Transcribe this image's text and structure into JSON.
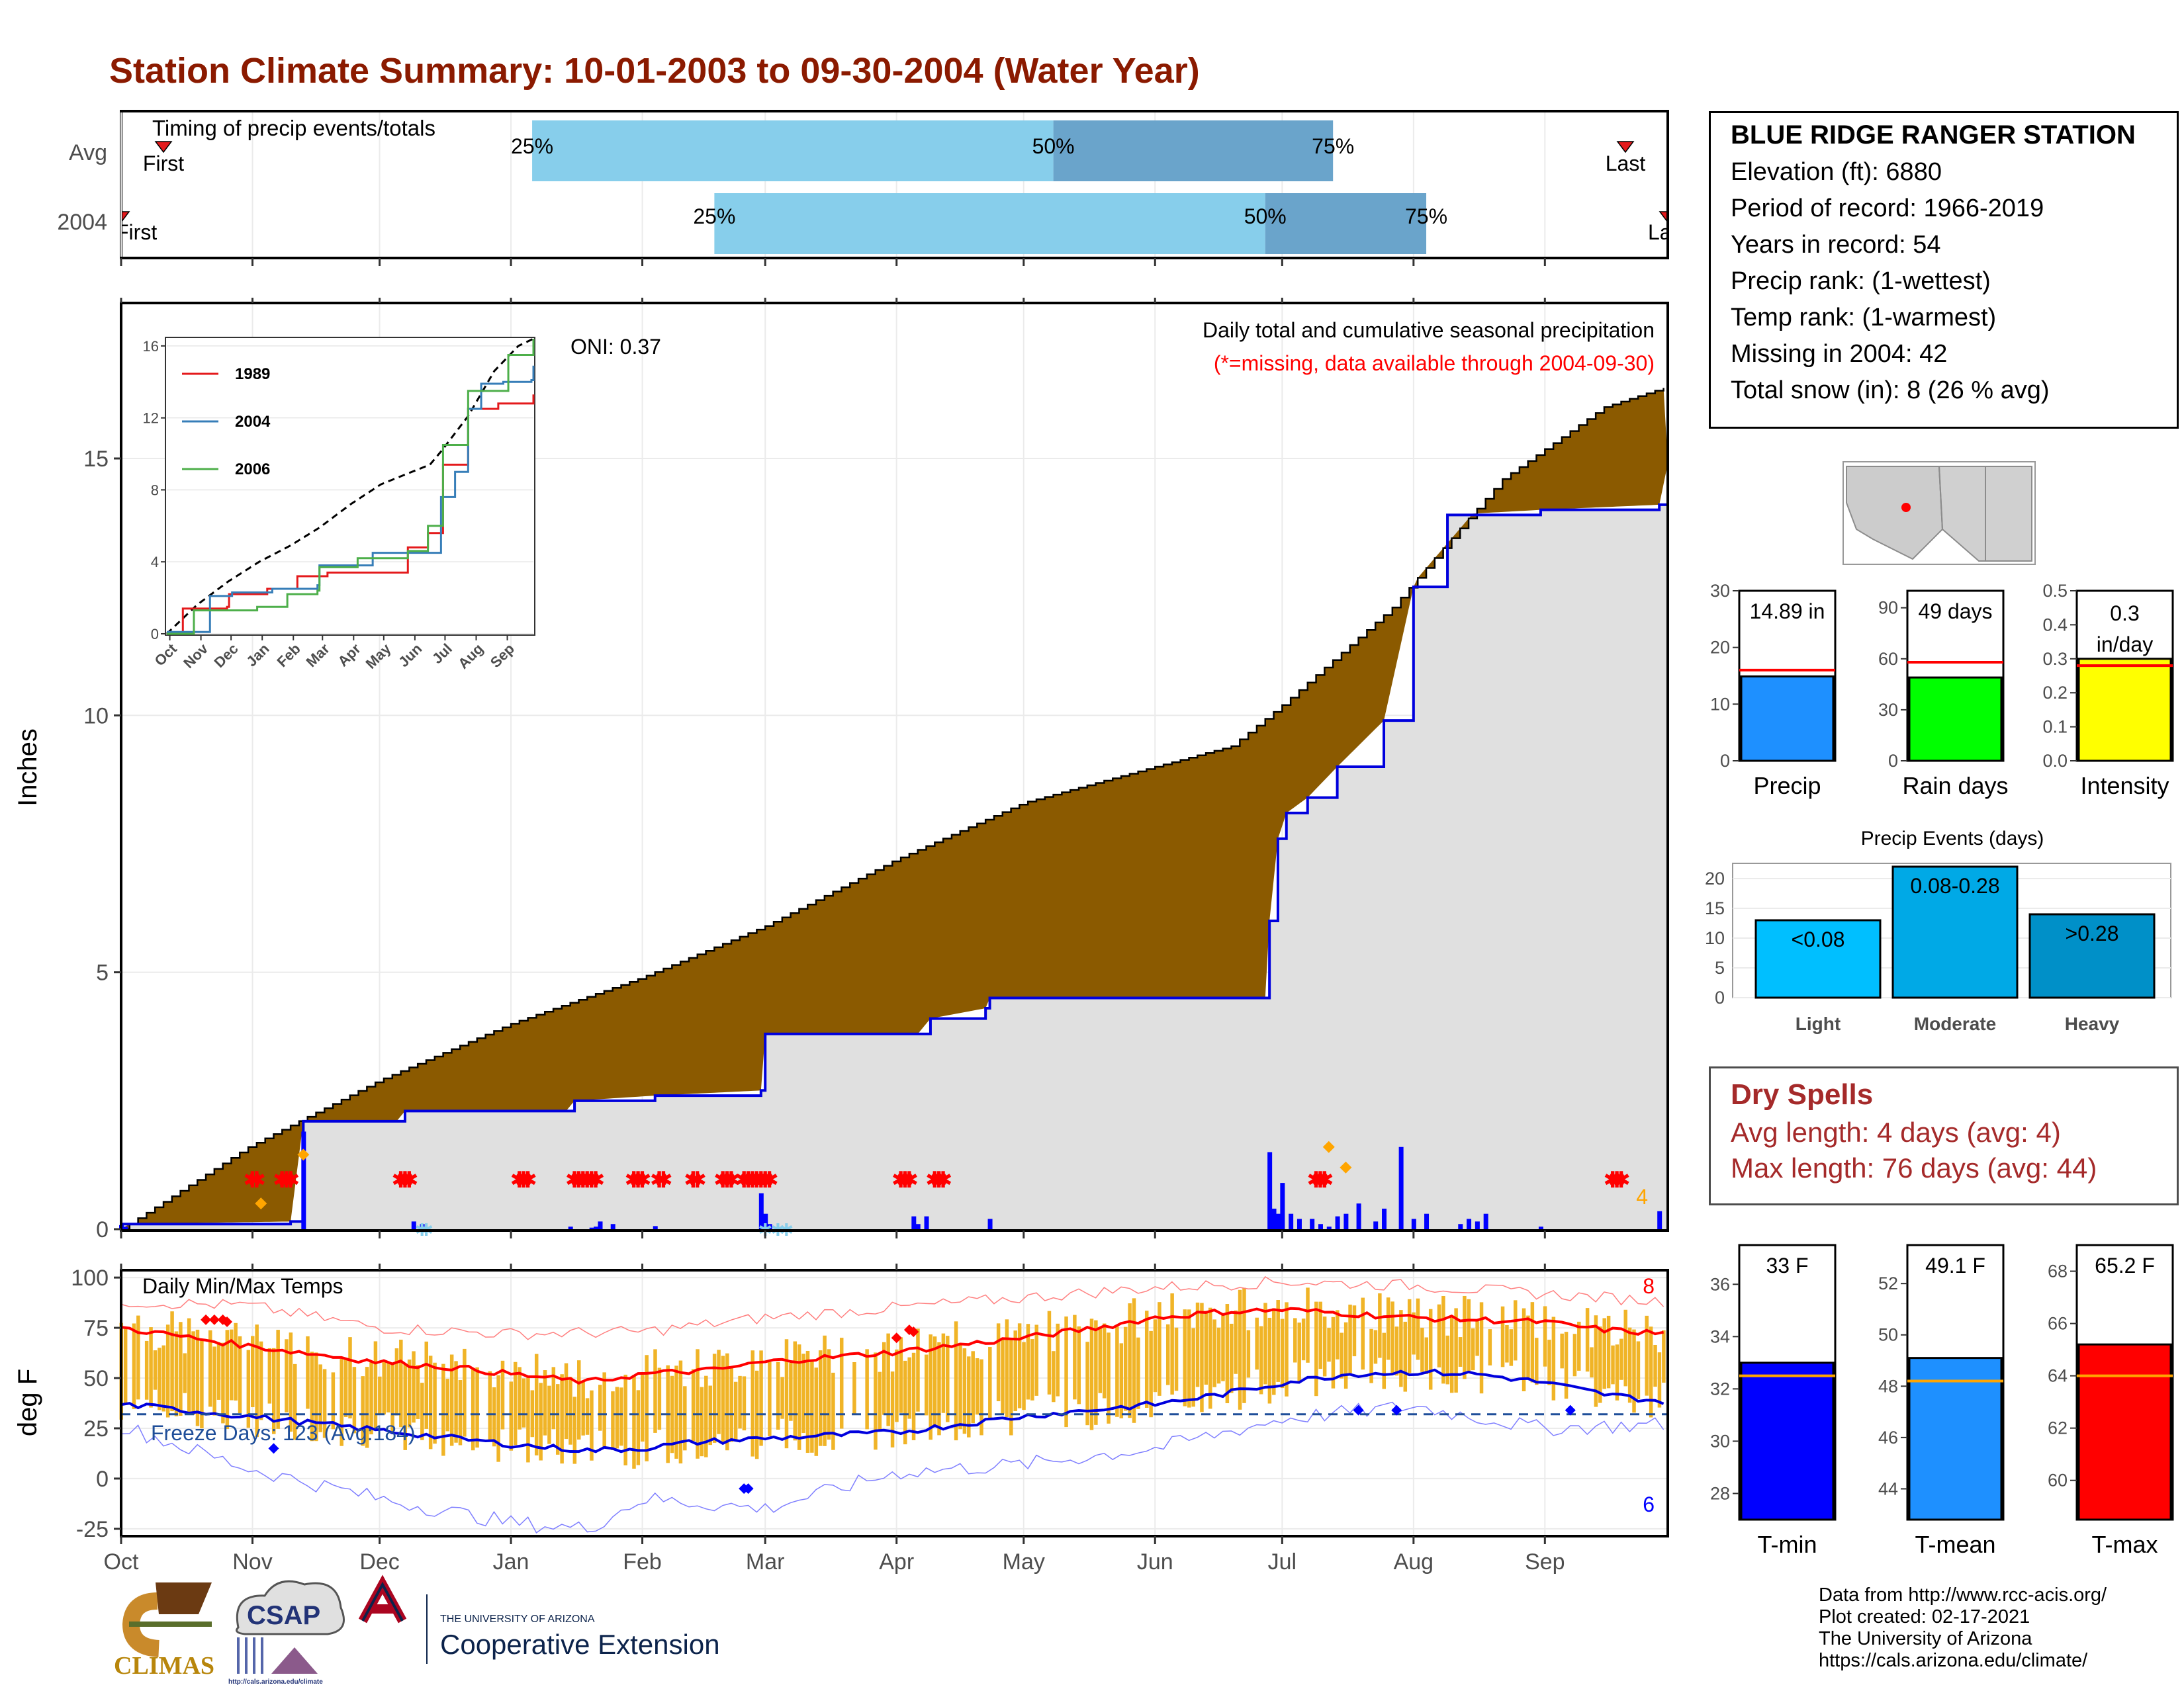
{
  "title": "Station Climate Summary: 10-01-2003 to 09-30-2004 (Water Year)",
  "timing": {
    "label": "Timing of precip events/totals",
    "rows": [
      {
        "name": "Avg",
        "first_day": 10,
        "last_day": 355,
        "p25": 97,
        "p50": 220,
        "p75": 286,
        "first_label": "First",
        "last_label": "Last"
      },
      {
        "name": "2004",
        "first_day": 0,
        "last_day": 365,
        "p25": 140,
        "p50": 270,
        "p75": 308,
        "first_label": "First",
        "last_label": "Last"
      }
    ],
    "pct_labels": [
      "25%",
      "50%",
      "75%"
    ]
  },
  "station": {
    "name": "BLUE RIDGE RANGER STATION",
    "lines": [
      "Elevation (ft): 6880",
      "Period of record: 1966-2019",
      "Years in record: 54",
      "Precip rank:  (1-wettest)",
      "Temp rank:  (1-warmest)",
      "Missing in 2004: 42",
      "Total snow (in): 8 (26 % avg)"
    ]
  },
  "precip_panel": {
    "ylabel": "Inches",
    "oni": "ONI: 0.37",
    "subtitle": "Daily total and cumulative seasonal precipitation",
    "missing_note": "(*=missing, data available through 2004-09-30)",
    "corner_count": "4"
  },
  "month_labels": [
    "Oct",
    "Nov",
    "Dec",
    "Jan",
    "Feb",
    "Mar",
    "Apr",
    "May",
    "Jun",
    "Jul",
    "Aug",
    "Sep"
  ],
  "chart_data": [
    {
      "type": "area",
      "name": "cumulative-precip",
      "ylabel": "Inches",
      "ylim": [
        0,
        18
      ],
      "xlim": [
        0,
        365
      ],
      "avg_cumulative": [
        [
          0,
          0
        ],
        [
          30,
          1.6
        ],
        [
          61,
          2.9
        ],
        [
          92,
          4.0
        ],
        [
          123,
          4.9
        ],
        [
          152,
          5.9
        ],
        [
          183,
          7.2
        ],
        [
          213,
          8.3
        ],
        [
          244,
          9.0
        ],
        [
          262,
          9.4
        ],
        [
          274,
          10.2
        ],
        [
          300,
          12.1
        ],
        [
          326,
          14.6
        ],
        [
          350,
          16.0
        ],
        [
          365,
          16.4
        ]
      ],
      "obs_cumulative": [
        [
          0,
          0.1
        ],
        [
          40,
          0.15
        ],
        [
          43,
          2.1
        ],
        [
          65,
          2.1
        ],
        [
          67,
          2.3
        ],
        [
          105,
          2.3
        ],
        [
          107,
          2.5
        ],
        [
          126,
          2.6
        ],
        [
          151,
          2.7
        ],
        [
          152,
          3.8
        ],
        [
          188,
          3.8
        ],
        [
          191,
          4.1
        ],
        [
          204,
          4.3
        ],
        [
          205,
          4.5
        ],
        [
          270,
          4.5
        ],
        [
          271,
          6.0
        ],
        [
          273,
          7.6
        ],
        [
          275,
          8.1
        ],
        [
          280,
          8.4
        ],
        [
          287,
          9.0
        ],
        [
          298,
          9.9
        ],
        [
          305,
          12.5
        ],
        [
          313,
          13.9
        ],
        [
          335,
          14.0
        ],
        [
          363,
          14.1
        ],
        [
          365,
          14.9
        ]
      ]
    },
    {
      "type": "bar",
      "name": "daily-precip",
      "daily": [
        [
          0,
          0.08
        ],
        [
          1,
          0.05
        ],
        [
          43,
          1.9
        ],
        [
          69,
          0.15
        ],
        [
          71,
          0.1
        ],
        [
          106,
          0.05
        ],
        [
          111,
          0.03
        ],
        [
          112,
          0.05
        ],
        [
          113,
          0.15
        ],
        [
          116,
          0.1
        ],
        [
          126,
          0.06
        ],
        [
          151,
          0.7
        ],
        [
          152,
          0.3
        ],
        [
          153,
          0.1
        ],
        [
          187,
          0.25
        ],
        [
          188,
          0.1
        ],
        [
          190,
          0.25
        ],
        [
          205,
          0.2
        ],
        [
          271,
          1.5
        ],
        [
          272,
          0.4
        ],
        [
          273,
          0.3
        ],
        [
          274,
          0.9
        ],
        [
          276,
          0.3
        ],
        [
          278,
          0.2
        ],
        [
          281,
          0.2
        ],
        [
          283,
          0.1
        ],
        [
          285,
          0.05
        ],
        [
          287,
          0.25
        ],
        [
          289,
          0.3
        ],
        [
          292,
          0.5
        ],
        [
          296,
          0.15
        ],
        [
          298,
          0.4
        ],
        [
          302,
          1.6
        ],
        [
          305,
          0.2
        ],
        [
          308,
          0.3
        ],
        [
          316,
          0.1
        ],
        [
          318,
          0.2
        ],
        [
          320,
          0.15
        ],
        [
          322,
          0.3
        ],
        [
          335,
          0.05
        ],
        [
          363,
          0.35
        ]
      ],
      "missing_days": [
        31,
        32,
        38,
        39,
        40,
        66,
        67,
        68,
        94,
        95,
        96,
        107,
        108,
        109,
        110,
        111,
        112,
        121,
        122,
        123,
        127,
        128,
        135,
        136,
        142,
        143,
        144,
        147,
        148,
        149,
        150,
        151,
        152,
        153,
        184,
        185,
        186,
        192,
        193,
        194,
        282,
        283,
        284,
        352,
        353,
        354
      ],
      "snow_days": [
        71,
        72,
        152,
        155,
        157
      ],
      "events": [
        [
          33,
          0.5
        ],
        [
          43,
          1.45
        ],
        [
          285,
          1.6
        ],
        [
          289,
          1.2
        ]
      ]
    },
    {
      "type": "line",
      "name": "inset-cumulative",
      "x_tick_labels": [
        "Oct",
        "Nov",
        "Dec",
        "Jan",
        "Feb",
        "Mar",
        "Apr",
        "May",
        "Jun",
        "Jul",
        "Aug",
        "Sep"
      ],
      "y_ticks": [
        0,
        4,
        8,
        12,
        16
      ],
      "ylim": [
        0,
        16
      ],
      "series": [
        {
          "name": "1989",
          "color": "#E41A1C",
          "points": [
            [
              0,
              0
            ],
            [
              15,
              0
            ],
            [
              16,
              1.4
            ],
            [
              60,
              1.5
            ],
            [
              62,
              2.2
            ],
            [
              100,
              2.5
            ],
            [
              130,
              3.2
            ],
            [
              160,
              3.4
            ],
            [
              240,
              4.8
            ],
            [
              260,
              5.6
            ],
            [
              275,
              9.4
            ],
            [
              300,
              12.5
            ],
            [
              330,
              12.8
            ],
            [
              365,
              13.3
            ]
          ]
        },
        {
          "name": "2004",
          "color": "#377EB8",
          "points": [
            [
              0,
              0.1
            ],
            [
              40,
              0.1
            ],
            [
              43,
              2.1
            ],
            [
              65,
              2.3
            ],
            [
              105,
              2.5
            ],
            [
              150,
              2.7
            ],
            [
              152,
              3.8
            ],
            [
              188,
              3.8
            ],
            [
              205,
              4.5
            ],
            [
              270,
              4.5
            ],
            [
              273,
              7.6
            ],
            [
              287,
              9.0
            ],
            [
              300,
              12.5
            ],
            [
              313,
              13.9
            ],
            [
              335,
              14.0
            ],
            [
              363,
              14.1
            ],
            [
              365,
              14.9
            ]
          ]
        },
        {
          "name": "2006",
          "color": "#4DAF4A",
          "points": [
            [
              0,
              0
            ],
            [
              25,
              0
            ],
            [
              27,
              1.3
            ],
            [
              90,
              1.5
            ],
            [
              120,
              2.2
            ],
            [
              150,
              2.4
            ],
            [
              152,
              3.7
            ],
            [
              190,
              4.2
            ],
            [
              240,
              4.6
            ],
            [
              260,
              6.0
            ],
            [
              275,
              10.5
            ],
            [
              300,
              13.5
            ],
            [
              340,
              15.5
            ],
            [
              365,
              16.4
            ]
          ]
        }
      ],
      "avg_series": {
        "name": "avg",
        "points": [
          [
            0,
            0
          ],
          [
            30,
            1.6
          ],
          [
            61,
            2.9
          ],
          [
            92,
            4.0
          ],
          [
            123,
            4.9
          ],
          [
            152,
            5.9
          ],
          [
            183,
            7.2
          ],
          [
            213,
            8.3
          ],
          [
            244,
            9.0
          ],
          [
            262,
            9.4
          ],
          [
            274,
            10.2
          ],
          [
            300,
            12.1
          ],
          [
            326,
            14.6
          ],
          [
            350,
            16.0
          ],
          [
            365,
            16.4
          ]
        ]
      }
    },
    {
      "type": "bar",
      "name": "summary-precip",
      "categories": [
        "Precip",
        "Rain days",
        "Intensity"
      ],
      "values": [
        14.89,
        49,
        0.3
      ],
      "averages": [
        16,
        58,
        0.28
      ],
      "value_labels": [
        "14.89 in",
        "49 days",
        "0.3 in/day"
      ],
      "ylims": [
        [
          0,
          30
        ],
        [
          0,
          100
        ],
        [
          0,
          0.5
        ]
      ],
      "y_ticks": [
        [
          0,
          10,
          20,
          30
        ],
        [
          0,
          30,
          60,
          90
        ],
        [
          0.0,
          0.1,
          0.2,
          0.3,
          0.4,
          0.5
        ]
      ],
      "colors": [
        "#1E90FF",
        "#00FF00",
        "#FFFF00"
      ]
    },
    {
      "type": "bar",
      "name": "precip-events",
      "title": "Precip Events (days)",
      "categories": [
        "Light",
        "Moderate",
        "Heavy"
      ],
      "bar_labels": [
        "<0.08",
        "0.08-0.28",
        ">0.28"
      ],
      "values": [
        13,
        22,
        14
      ],
      "ylim": [
        0,
        22
      ],
      "y_ticks": [
        0,
        5,
        10,
        15,
        20
      ],
      "colors": [
        "#00BFFF",
        "#00A9E6",
        "#0090C8"
      ]
    },
    {
      "type": "line",
      "name": "daily-temps",
      "title": "Daily Min/Max Temps",
      "ylabel": "deg F",
      "ylim": [
        -28,
        103
      ],
      "y_ticks": [
        -25,
        0,
        25,
        50,
        75,
        100
      ],
      "freeze_label": "Freeze Days: 123 (Avg:184)",
      "freeze_line": 32,
      "max_count_label": "8",
      "min_count_label": "6",
      "avg_max": [
        [
          0,
          75
        ],
        [
          30,
          66
        ],
        [
          61,
          58
        ],
        [
          80,
          55
        ],
        [
          92,
          52
        ],
        [
          110,
          48
        ],
        [
          123,
          52
        ],
        [
          140,
          54
        ],
        [
          152,
          58
        ],
        [
          165,
          60
        ],
        [
          183,
          63
        ],
        [
          200,
          67
        ],
        [
          213,
          70
        ],
        [
          230,
          75
        ],
        [
          244,
          80
        ],
        [
          260,
          83
        ],
        [
          275,
          84
        ],
        [
          290,
          82
        ],
        [
          305,
          80
        ],
        [
          320,
          79
        ],
        [
          335,
          78
        ],
        [
          350,
          74
        ],
        [
          365,
          72
        ]
      ],
      "avg_min": [
        [
          0,
          37
        ],
        [
          30,
          31
        ],
        [
          61,
          24
        ],
        [
          92,
          17
        ],
        [
          110,
          14
        ],
        [
          123,
          15
        ],
        [
          135,
          18
        ],
        [
          152,
          20
        ],
        [
          183,
          23
        ],
        [
          213,
          31
        ],
        [
          244,
          37
        ],
        [
          260,
          42
        ],
        [
          275,
          48
        ],
        [
          290,
          52
        ],
        [
          305,
          53
        ],
        [
          320,
          52
        ],
        [
          335,
          48
        ],
        [
          350,
          42
        ],
        [
          365,
          38
        ]
      ],
      "record_max": [
        [
          0,
          88
        ],
        [
          30,
          86
        ],
        [
          61,
          75
        ],
        [
          92,
          72
        ],
        [
          123,
          73
        ],
        [
          152,
          80
        ],
        [
          183,
          85
        ],
        [
          213,
          90
        ],
        [
          244,
          95
        ],
        [
          275,
          98
        ],
        [
          305,
          96
        ],
        [
          335,
          92
        ],
        [
          365,
          88
        ]
      ],
      "record_min": [
        [
          0,
          26
        ],
        [
          30,
          5
        ],
        [
          61,
          -10
        ],
        [
          92,
          -22
        ],
        [
          110,
          -25
        ],
        [
          123,
          -10
        ],
        [
          152,
          -15
        ],
        [
          183,
          3
        ],
        [
          213,
          7
        ],
        [
          244,
          15
        ],
        [
          275,
          30
        ],
        [
          305,
          36
        ],
        [
          335,
          25
        ],
        [
          365,
          27
        ]
      ]
    },
    {
      "type": "bar",
      "name": "summary-temps",
      "categories": [
        "T-min",
        "T-mean",
        "T-max"
      ],
      "values": [
        33,
        49.1,
        65.2
      ],
      "averages": [
        32.5,
        48.2,
        64.0
      ],
      "value_labels": [
        "33 F",
        "49.1 F",
        "65.2 F"
      ],
      "ylims": [
        [
          27,
          37.5
        ],
        [
          42.8,
          53.5
        ],
        [
          58.5,
          69
        ]
      ],
      "y_ticks": [
        [
          28,
          30,
          32,
          34,
          36
        ],
        [
          44,
          46,
          48,
          50,
          52
        ],
        [
          60,
          62,
          64,
          66,
          68
        ]
      ],
      "colors": [
        "#0000FF",
        "#1E90FF",
        "#FF0000"
      ]
    }
  ],
  "dry_spells": {
    "title": "Dry Spells",
    "avg_length": "Avg length: 4 days (avg: 4)",
    "max_length": "Max length: 76 days (avg: 44)"
  },
  "logos": {
    "climas": "CLIMAS",
    "csap": "CSAP",
    "csap_url": "http://cals.arizona.edu/climate",
    "ua_line1": "THE UNIVERSITY OF ARIZONA",
    "ua_line2": "Cooperative Extension"
  },
  "credits": [
    "Data from http://www.rcc-acis.org/",
    "Plot created: 02-17-2021",
    "The University of Arizona",
    "https://cals.arizona.edu/climate/"
  ]
}
